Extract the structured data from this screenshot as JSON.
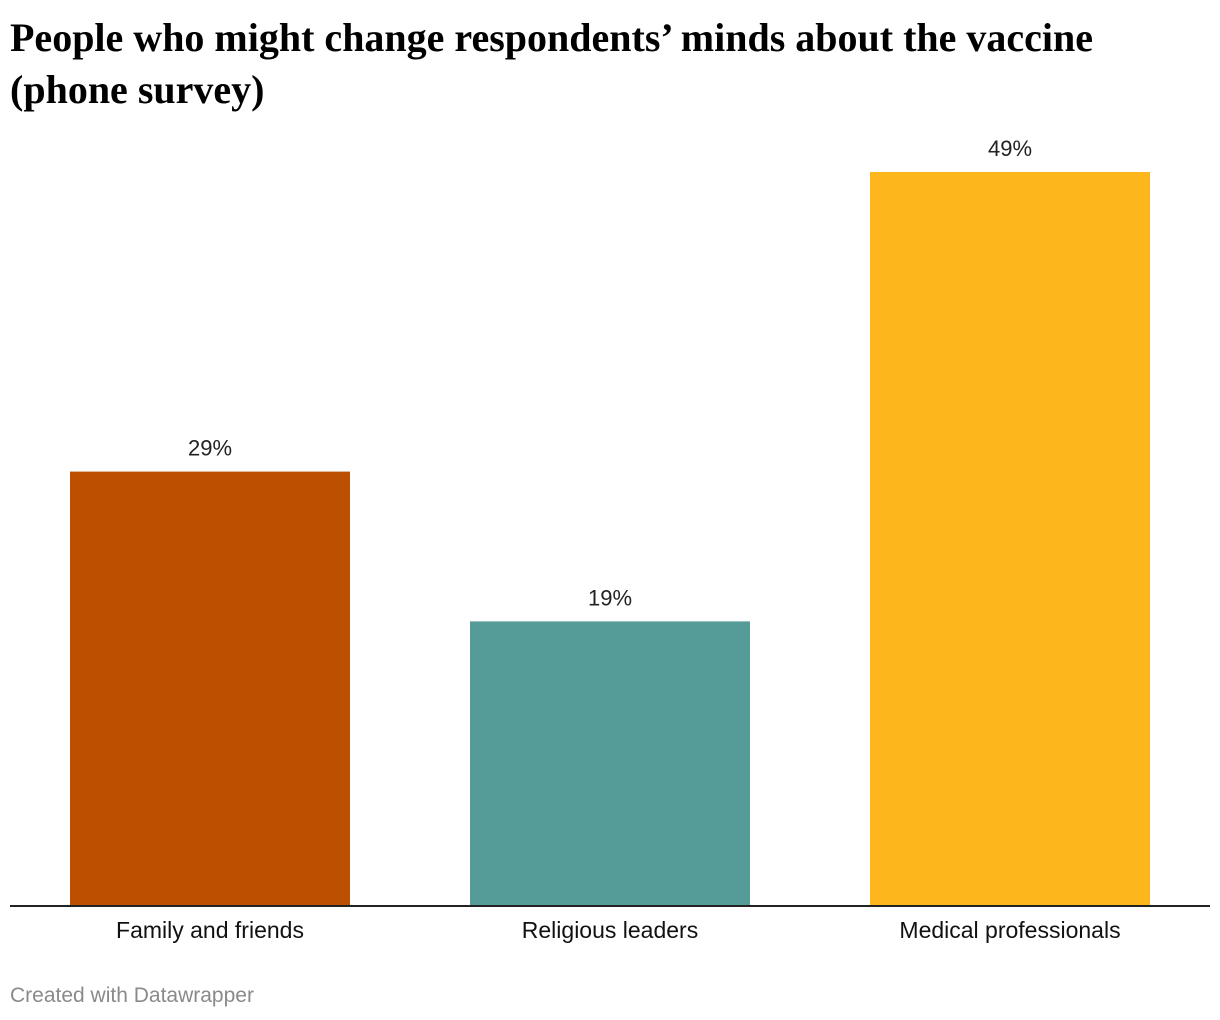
{
  "title": "People who might change respondents’ minds about the vaccine (phone survey)",
  "footer": "Created with Datawrapper",
  "chart_data": {
    "type": "bar",
    "title": "People who might change respondents’ minds about the vaccine (phone survey)",
    "categories": [
      "Family and friends",
      "Religious leaders",
      "Medical professionals"
    ],
    "values": [
      29,
      19,
      49
    ],
    "value_labels": [
      "29%",
      "19%",
      "49%"
    ],
    "colors": [
      "#bd5000",
      "#559c98",
      "#fdb71c"
    ],
    "xlabel": "",
    "ylabel": "",
    "ylim": [
      0,
      49
    ],
    "grid": false,
    "legend": "none"
  }
}
